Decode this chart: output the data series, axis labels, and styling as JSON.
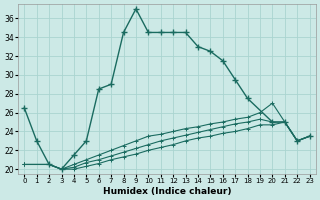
{
  "xlabel": "Humidex (Indice chaleur)",
  "background_color": "#cce9e6",
  "grid_color": "#aad4d0",
  "line_color": "#1a6b60",
  "xlim": [
    -0.5,
    23.5
  ],
  "ylim": [
    19.5,
    37.5
  ],
  "yticks": [
    20,
    22,
    24,
    26,
    28,
    30,
    32,
    34,
    36
  ],
  "xticks": [
    0,
    1,
    2,
    3,
    4,
    5,
    6,
    7,
    8,
    9,
    10,
    11,
    12,
    13,
    14,
    15,
    16,
    17,
    18,
    19,
    20,
    21,
    22,
    23
  ],
  "curve1_x": [
    0,
    1,
    2,
    3,
    4,
    5,
    6,
    7,
    8,
    9,
    10,
    11,
    12,
    13,
    14,
    15,
    16,
    17,
    18,
    20,
    21,
    22,
    23
  ],
  "curve1_y": [
    26.5,
    23.0,
    20.5,
    20.0,
    21.5,
    23.0,
    28.5,
    29.0,
    34.5,
    37.0,
    34.5,
    34.5,
    34.5,
    34.5,
    33.0,
    32.5,
    31.5,
    29.5,
    27.5,
    25.0,
    25.0,
    23.0,
    23.5
  ],
  "curve2_x": [
    0,
    2,
    3,
    4,
    5,
    6,
    7,
    8,
    9,
    10,
    11,
    12,
    13,
    14,
    15,
    16,
    17,
    18,
    19,
    20,
    21,
    22,
    23
  ],
  "curve2_y": [
    20.5,
    20.5,
    20.0,
    20.5,
    21.0,
    21.5,
    22.0,
    22.5,
    23.0,
    23.5,
    23.7,
    24.0,
    24.3,
    24.5,
    24.8,
    25.0,
    25.3,
    25.5,
    26.0,
    27.0,
    25.0,
    23.0,
    23.5
  ],
  "curve3_x": [
    0,
    2,
    3,
    4,
    5,
    6,
    7,
    8,
    9,
    10,
    11,
    12,
    13,
    14,
    15,
    16,
    17,
    18,
    19,
    20,
    21,
    22,
    23
  ],
  "curve3_y": [
    20.5,
    20.5,
    20.0,
    20.2,
    20.7,
    21.0,
    21.4,
    21.8,
    22.2,
    22.6,
    23.0,
    23.3,
    23.6,
    23.9,
    24.2,
    24.5,
    24.8,
    25.0,
    25.3,
    25.0,
    25.0,
    23.0,
    23.5
  ],
  "curve4_x": [
    0,
    2,
    3,
    4,
    5,
    6,
    7,
    8,
    9,
    10,
    11,
    12,
    13,
    14,
    15,
    16,
    17,
    18,
    19,
    20,
    21,
    22,
    23
  ],
  "curve4_y": [
    20.5,
    20.5,
    20.0,
    20.0,
    20.3,
    20.6,
    21.0,
    21.3,
    21.6,
    22.0,
    22.3,
    22.6,
    23.0,
    23.3,
    23.5,
    23.8,
    24.0,
    24.3,
    24.7,
    24.7,
    25.0,
    23.0,
    23.5
  ]
}
